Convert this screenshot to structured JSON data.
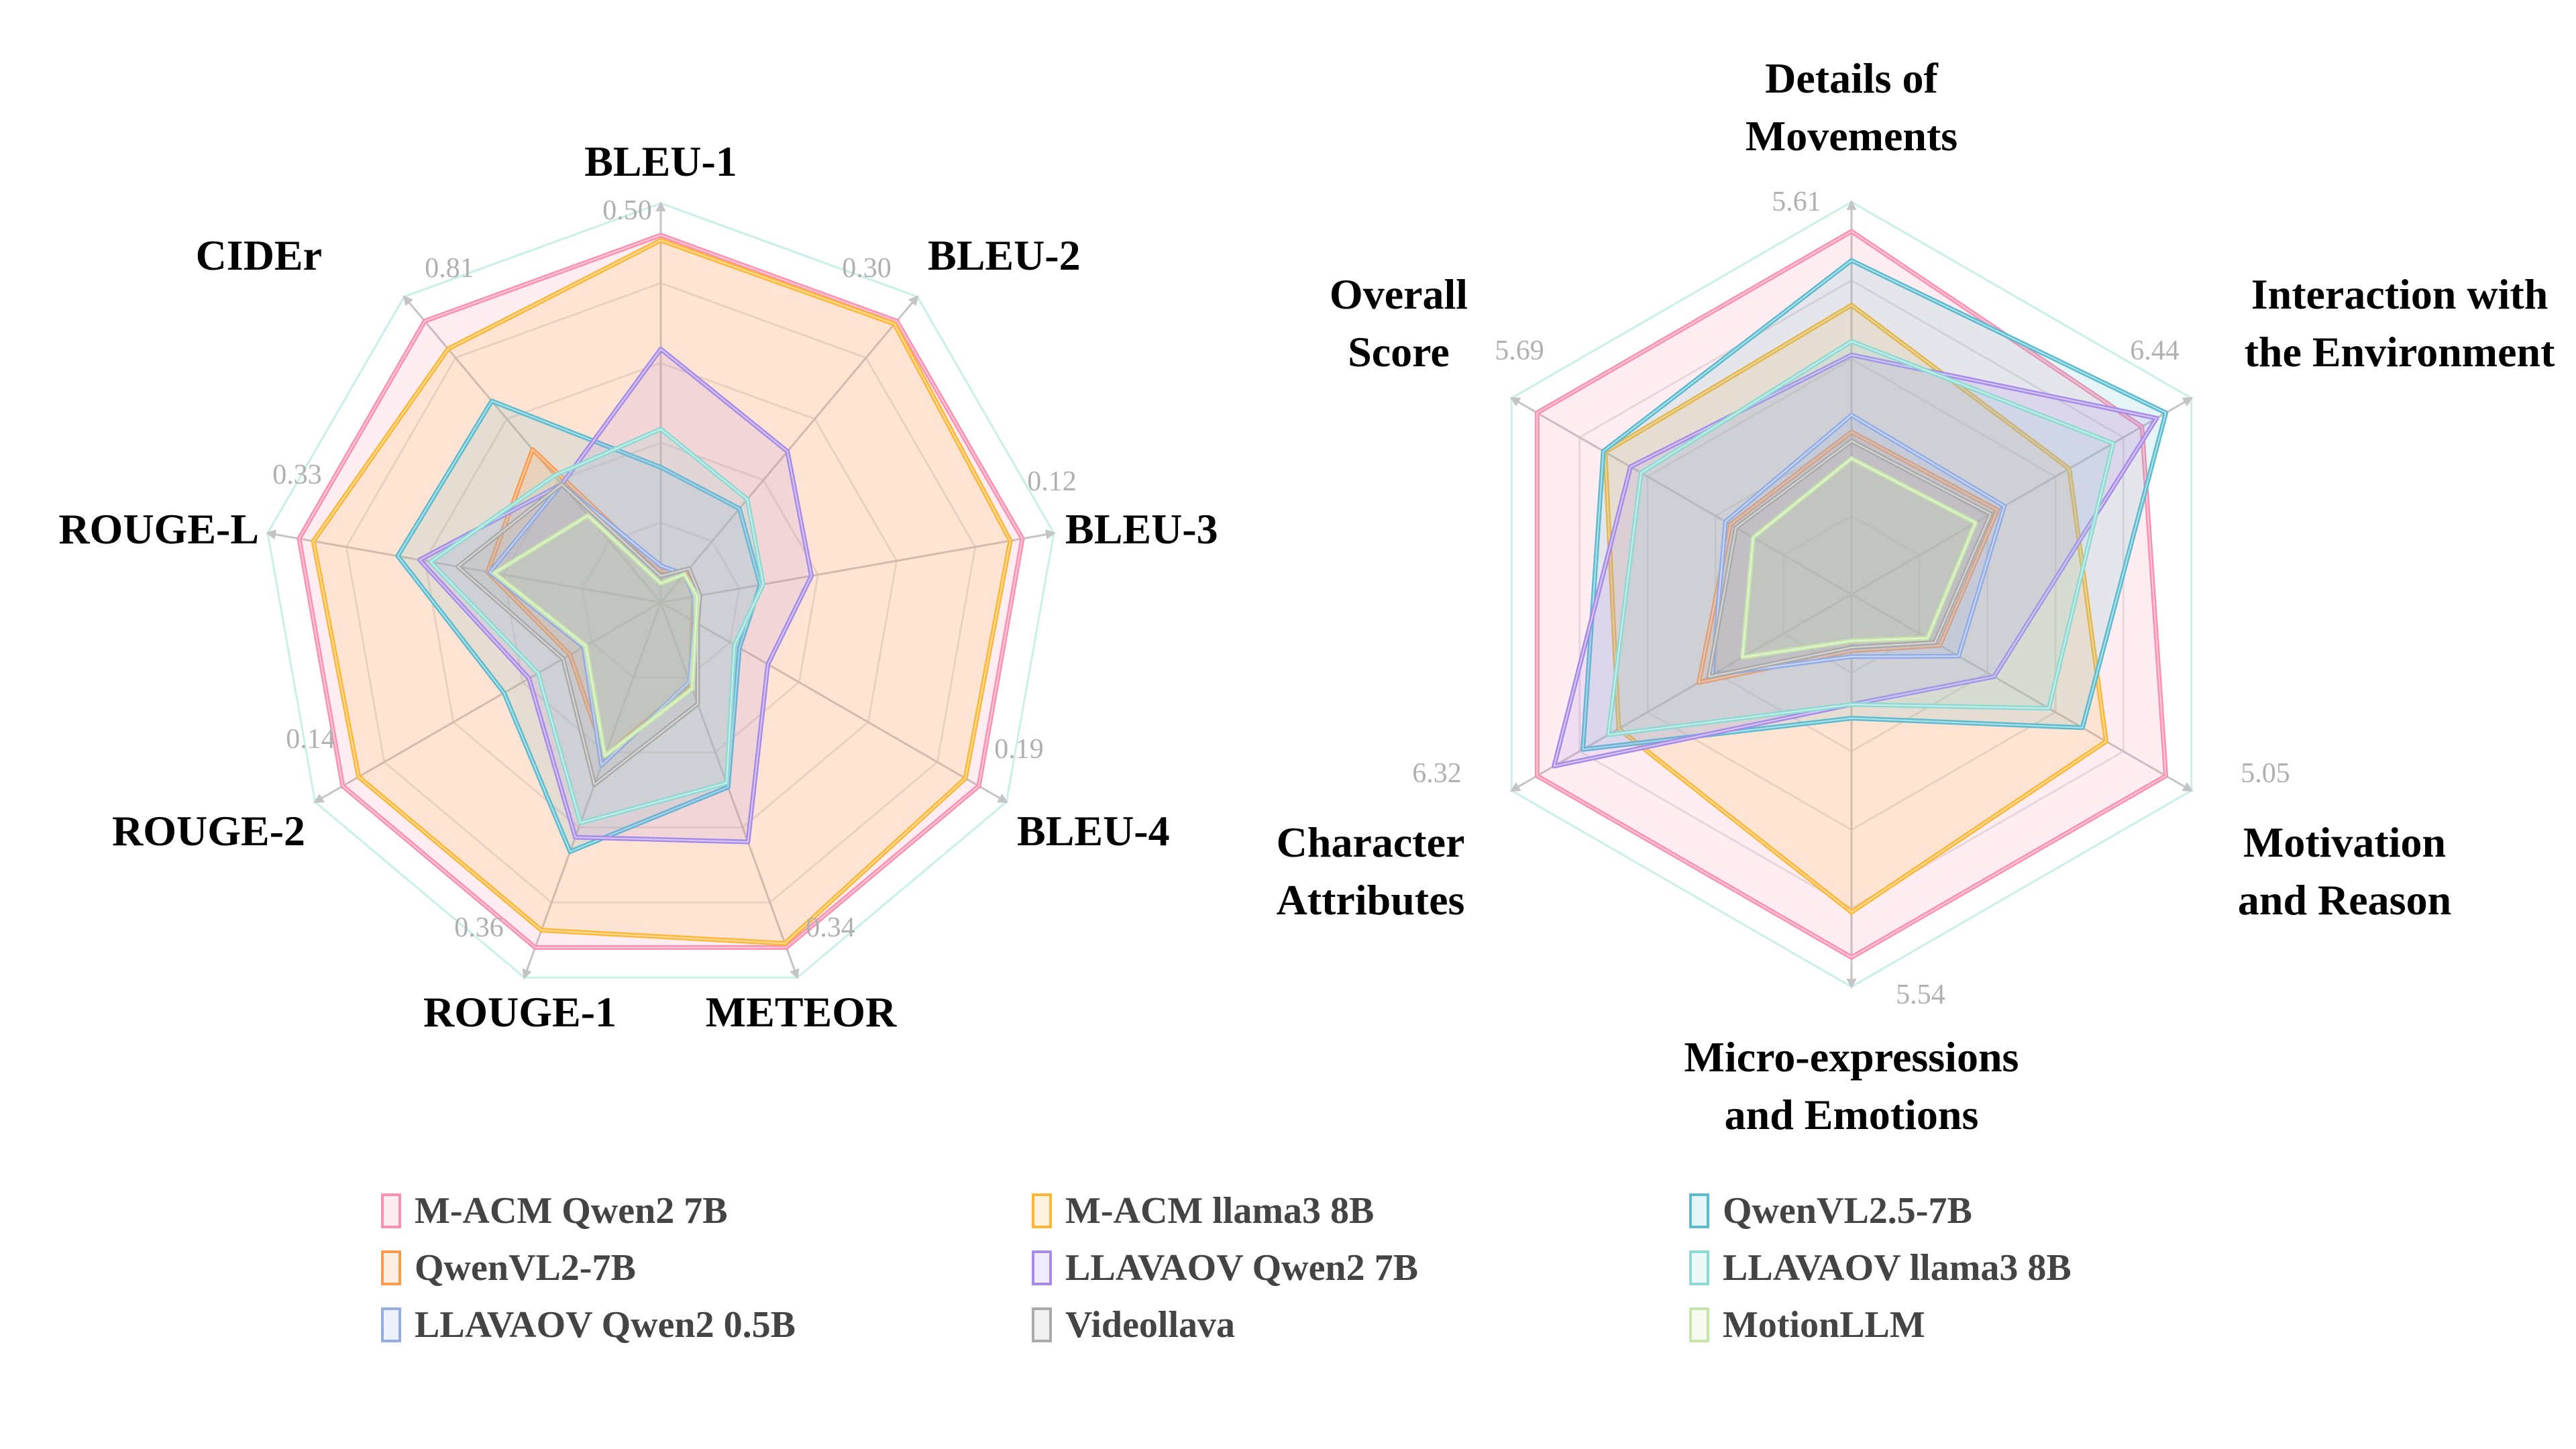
{
  "chart_data": [
    {
      "type": "radar",
      "axes": [
        "BLEU-1",
        "BLEU-2",
        "BLEU-3",
        "BLEU-4",
        "METEOR",
        "ROUGE-1",
        "ROUGE-2",
        "ROUGE-L",
        "CIDEr"
      ],
      "axis_max_labels": [
        "0.50",
        "0.30",
        "0.12",
        "0.19",
        "0.34",
        "0.36",
        "0.14",
        "0.33",
        "0.81"
      ],
      "axis_max": [
        0.5,
        0.3,
        0.12,
        0.19,
        0.34,
        0.36,
        0.14,
        0.33,
        0.81
      ],
      "grid": true,
      "series": [
        {
          "name": "M-ACM Qwen2 7B",
          "color": "#FF8FB1",
          "values": [
            0.5,
            0.3,
            0.12,
            0.19,
            0.34,
            0.36,
            0.14,
            0.33,
            0.81
          ]
        },
        {
          "name": "M-ACM llama3 8B",
          "color": "#FFB733",
          "values": [
            0.493,
            0.297,
            0.116,
            0.182,
            0.336,
            0.342,
            0.133,
            0.317,
            0.73
          ]
        },
        {
          "name": "QwenVL2.5-7B",
          "color": "#5BBCCF",
          "values": [
            0.184,
            0.1,
            0.033,
            0.047,
            0.182,
            0.26,
            0.069,
            0.24,
            0.58
          ]
        },
        {
          "name": "QwenVL2-7B",
          "color": "#FF9A4D",
          "values": [
            0.043,
            0.032,
            0.011,
            0.019,
            0.08,
            0.16,
            0.04,
            0.158,
            0.44
          ]
        },
        {
          "name": "LLAVAOV Qwen2 7B",
          "color": "#A78BEA",
          "values": [
            0.345,
            0.161,
            0.05,
            0.064,
            0.236,
            0.245,
            0.058,
            0.22,
            0.34
          ]
        },
        {
          "name": "LLAVAOV llama3 8B",
          "color": "#8ED9D2",
          "values": [
            0.236,
            0.11,
            0.034,
            0.044,
            0.178,
            0.23,
            0.054,
            0.21,
            0.365
          ]
        },
        {
          "name": "LLAVAOV Qwen2 0.5B",
          "color": "#92ACE6",
          "values": [
            0.05,
            0.03,
            0.011,
            0.02,
            0.078,
            0.17,
            0.034,
            0.156,
            0.34
          ]
        },
        {
          "name": "Videollava",
          "color": "#AAAAAA",
          "values": [
            0.036,
            0.036,
            0.013,
            0.022,
            0.1,
            0.19,
            0.043,
            0.185,
            0.34
          ]
        },
        {
          "name": "MotionLLM",
          "color": "#C5E6A8",
          "values": [
            0.026,
            0.03,
            0.012,
            0.021,
            0.085,
            0.16,
            0.033,
            0.152,
            0.25
          ]
        }
      ]
    },
    {
      "type": "radar",
      "axes": [
        [
          "Details of",
          "Movements"
        ],
        [
          "Interaction with",
          "the Environment"
        ],
        [
          "Motivation",
          "and Reason"
        ],
        [
          "Micro-expressions",
          "and Emotions"
        ],
        [
          "Character",
          "Attributes"
        ],
        [
          "Overall",
          "Score"
        ]
      ],
      "axis_max_labels": [
        "5.61",
        "6.44",
        "5.05",
        "5.54",
        "6.32",
        "5.69"
      ],
      "axis_max": [
        5.61,
        6.44,
        5.05,
        5.54,
        6.32,
        5.69
      ],
      "grid": true,
      "series": [
        {
          "name": "M-ACM Qwen2 7B",
          "color": "#FF8FB1",
          "values": [
            5.61,
            5.95,
            5.05,
            5.54,
            6.32,
            5.69
          ]
        },
        {
          "name": "M-ACM llama3 8B",
          "color": "#FFB733",
          "values": [
            4.47,
            4.46,
            4.09,
            4.85,
            4.68,
            4.46
          ]
        },
        {
          "name": "QwenVL2.5-7B",
          "color": "#5BBCCF",
          "values": [
            5.16,
            6.44,
            3.71,
            1.89,
            5.4,
            4.49
          ]
        },
        {
          "name": "QwenVL2-7B",
          "color": "#FF9A4D",
          "values": [
            2.51,
            2.99,
            1.42,
            0.86,
            3.07,
            2.19
          ]
        },
        {
          "name": "LLAVAOV Qwen2 7B",
          "color": "#A78BEA",
          "values": [
            3.7,
            6.25,
            2.29,
            1.68,
            5.98,
            4.0
          ]
        },
        {
          "name": "LLAVAOV llama3 8B",
          "color": "#8ED9D2",
          "values": [
            3.91,
            5.36,
            3.17,
            1.68,
            4.89,
            3.81
          ]
        },
        {
          "name": "LLAVAOV Qwen2 0.5B",
          "color": "#92ACE6",
          "values": [
            2.77,
            3.13,
            1.72,
            0.95,
            2.8,
            2.28
          ]
        },
        {
          "name": "Videollava",
          "color": "#AAAAAA",
          "values": [
            2.37,
            2.85,
            1.34,
            0.81,
            2.87,
            2.09
          ]
        },
        {
          "name": "MotionLLM",
          "color": "#C5E6A8",
          "values": [
            2.1,
            2.54,
            1.22,
            0.71,
            2.19,
            1.78
          ]
        }
      ]
    }
  ],
  "legend": {
    "placement": "bottom",
    "items": [
      {
        "label": "M-ACM Qwen2 7B",
        "color": "#FF8FB1"
      },
      {
        "label": "M-ACM llama3 8B",
        "color": "#FFB733"
      },
      {
        "label": "QwenVL2.5-7B",
        "color": "#5BBCCF"
      },
      {
        "label": "QwenVL2-7B",
        "color": "#FF9A4D"
      },
      {
        "label": "LLAVAOV Qwen2 7B",
        "color": "#A78BEA"
      },
      {
        "label": "LLAVAOV llama3 8B",
        "color": "#8ED9D2"
      },
      {
        "label": "LLAVAOV Qwen2 0.5B",
        "color": "#92ACE6"
      },
      {
        "label": "Videollava",
        "color": "#AAAAAA"
      },
      {
        "label": "MotionLLM",
        "color": "#C5E6A8"
      }
    ]
  }
}
